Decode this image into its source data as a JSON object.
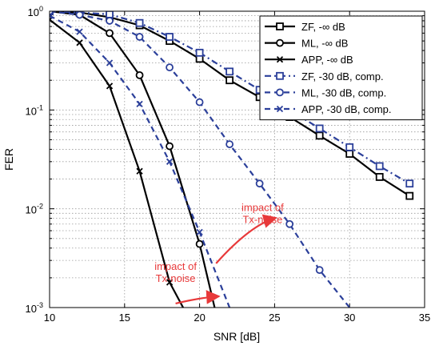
{
  "chart_data": {
    "type": "line",
    "xlabel": "SNR [dB]",
    "ylabel": "FER",
    "xlim": [
      10,
      35
    ],
    "ylim": [
      0.001,
      1
    ],
    "yscale": "log",
    "grid": true,
    "legend_position": "top-right",
    "x_ticks": [
      "10",
      "15",
      "20",
      "25",
      "30",
      "35"
    ],
    "y_ticks": [
      {
        "base": "10",
        "exp": "0",
        "value": 1
      },
      {
        "base": "10",
        "exp": "-1",
        "value": 0.1
      },
      {
        "base": "10",
        "exp": "-2",
        "value": 0.01
      },
      {
        "base": "10",
        "exp": "-3",
        "value": 0.001
      }
    ],
    "series": [
      {
        "name": "ZF, -∞ dB",
        "color": "#000000",
        "dash": "solid",
        "marker": "square",
        "x": [
          10,
          12,
          14,
          16,
          18,
          20,
          22,
          24,
          26,
          28,
          30,
          32,
          34
        ],
        "y": [
          1.0,
          0.97,
          0.87,
          0.72,
          0.5,
          0.33,
          0.2,
          0.135,
          0.085,
          0.055,
          0.036,
          0.021,
          0.0135
        ]
      },
      {
        "name": "ML, -∞ dB",
        "color": "#000000",
        "dash": "solid",
        "marker": "circle",
        "x": [
          10,
          12,
          14,
          16,
          18,
          20,
          21
        ],
        "y": [
          1.0,
          0.92,
          0.6,
          0.225,
          0.043,
          0.0044,
          0.001
        ]
      },
      {
        "name": "APP, -∞ dB",
        "color": "#000000",
        "dash": "solid",
        "marker": "x",
        "x": [
          10,
          12,
          14,
          16,
          18,
          18.9
        ],
        "y": [
          0.82,
          0.48,
          0.175,
          0.024,
          0.0018,
          0.001
        ]
      },
      {
        "name": "ZF, -30 dB, comp.",
        "color": "#2b3f9a",
        "dash": "dashdot",
        "marker": "square",
        "x": [
          10,
          12,
          14,
          16,
          18,
          20,
          22,
          24,
          26,
          28,
          30,
          32,
          34
        ],
        "y": [
          1.0,
          0.97,
          0.93,
          0.76,
          0.55,
          0.38,
          0.245,
          0.16,
          0.1,
          0.065,
          0.042,
          0.027,
          0.018
        ]
      },
      {
        "name": "ML, -30 dB, comp.",
        "color": "#2b3f9a",
        "dash": "dashed",
        "marker": "circle",
        "x": [
          10,
          12,
          14,
          16,
          18,
          20,
          22,
          24,
          26,
          28,
          30
        ],
        "y": [
          1.0,
          0.92,
          0.8,
          0.55,
          0.27,
          0.12,
          0.045,
          0.018,
          0.007,
          0.0024,
          0.001
        ]
      },
      {
        "name": "APP, -30 dB, comp.",
        "color": "#2b3f9a",
        "dash": "dashed",
        "marker": "x",
        "x": [
          10,
          12,
          14,
          16,
          18,
          20,
          22
        ],
        "y": [
          0.9,
          0.62,
          0.3,
          0.115,
          0.03,
          0.0058,
          0.001
        ]
      }
    ],
    "annotations": [
      {
        "text": "impact of Tx-noise",
        "lines": [
          "impact of",
          "Tx-noise"
        ],
        "color": "#e8393a",
        "text_x": 24.2,
        "text_y": 0.0095,
        "arrow_from": [
          21.1,
          0.0028
        ],
        "arrow_to": [
          25.1,
          0.0081
        ]
      },
      {
        "text": "impact of Tx-noise",
        "lines": [
          "impact of",
          "Tx-noise"
        ],
        "color": "#e8393a",
        "text_x": 18.4,
        "text_y": 0.0024,
        "arrow_from": [
          18.4,
          0.0011
        ],
        "arrow_to": [
          21.3,
          0.0013
        ]
      }
    ]
  }
}
